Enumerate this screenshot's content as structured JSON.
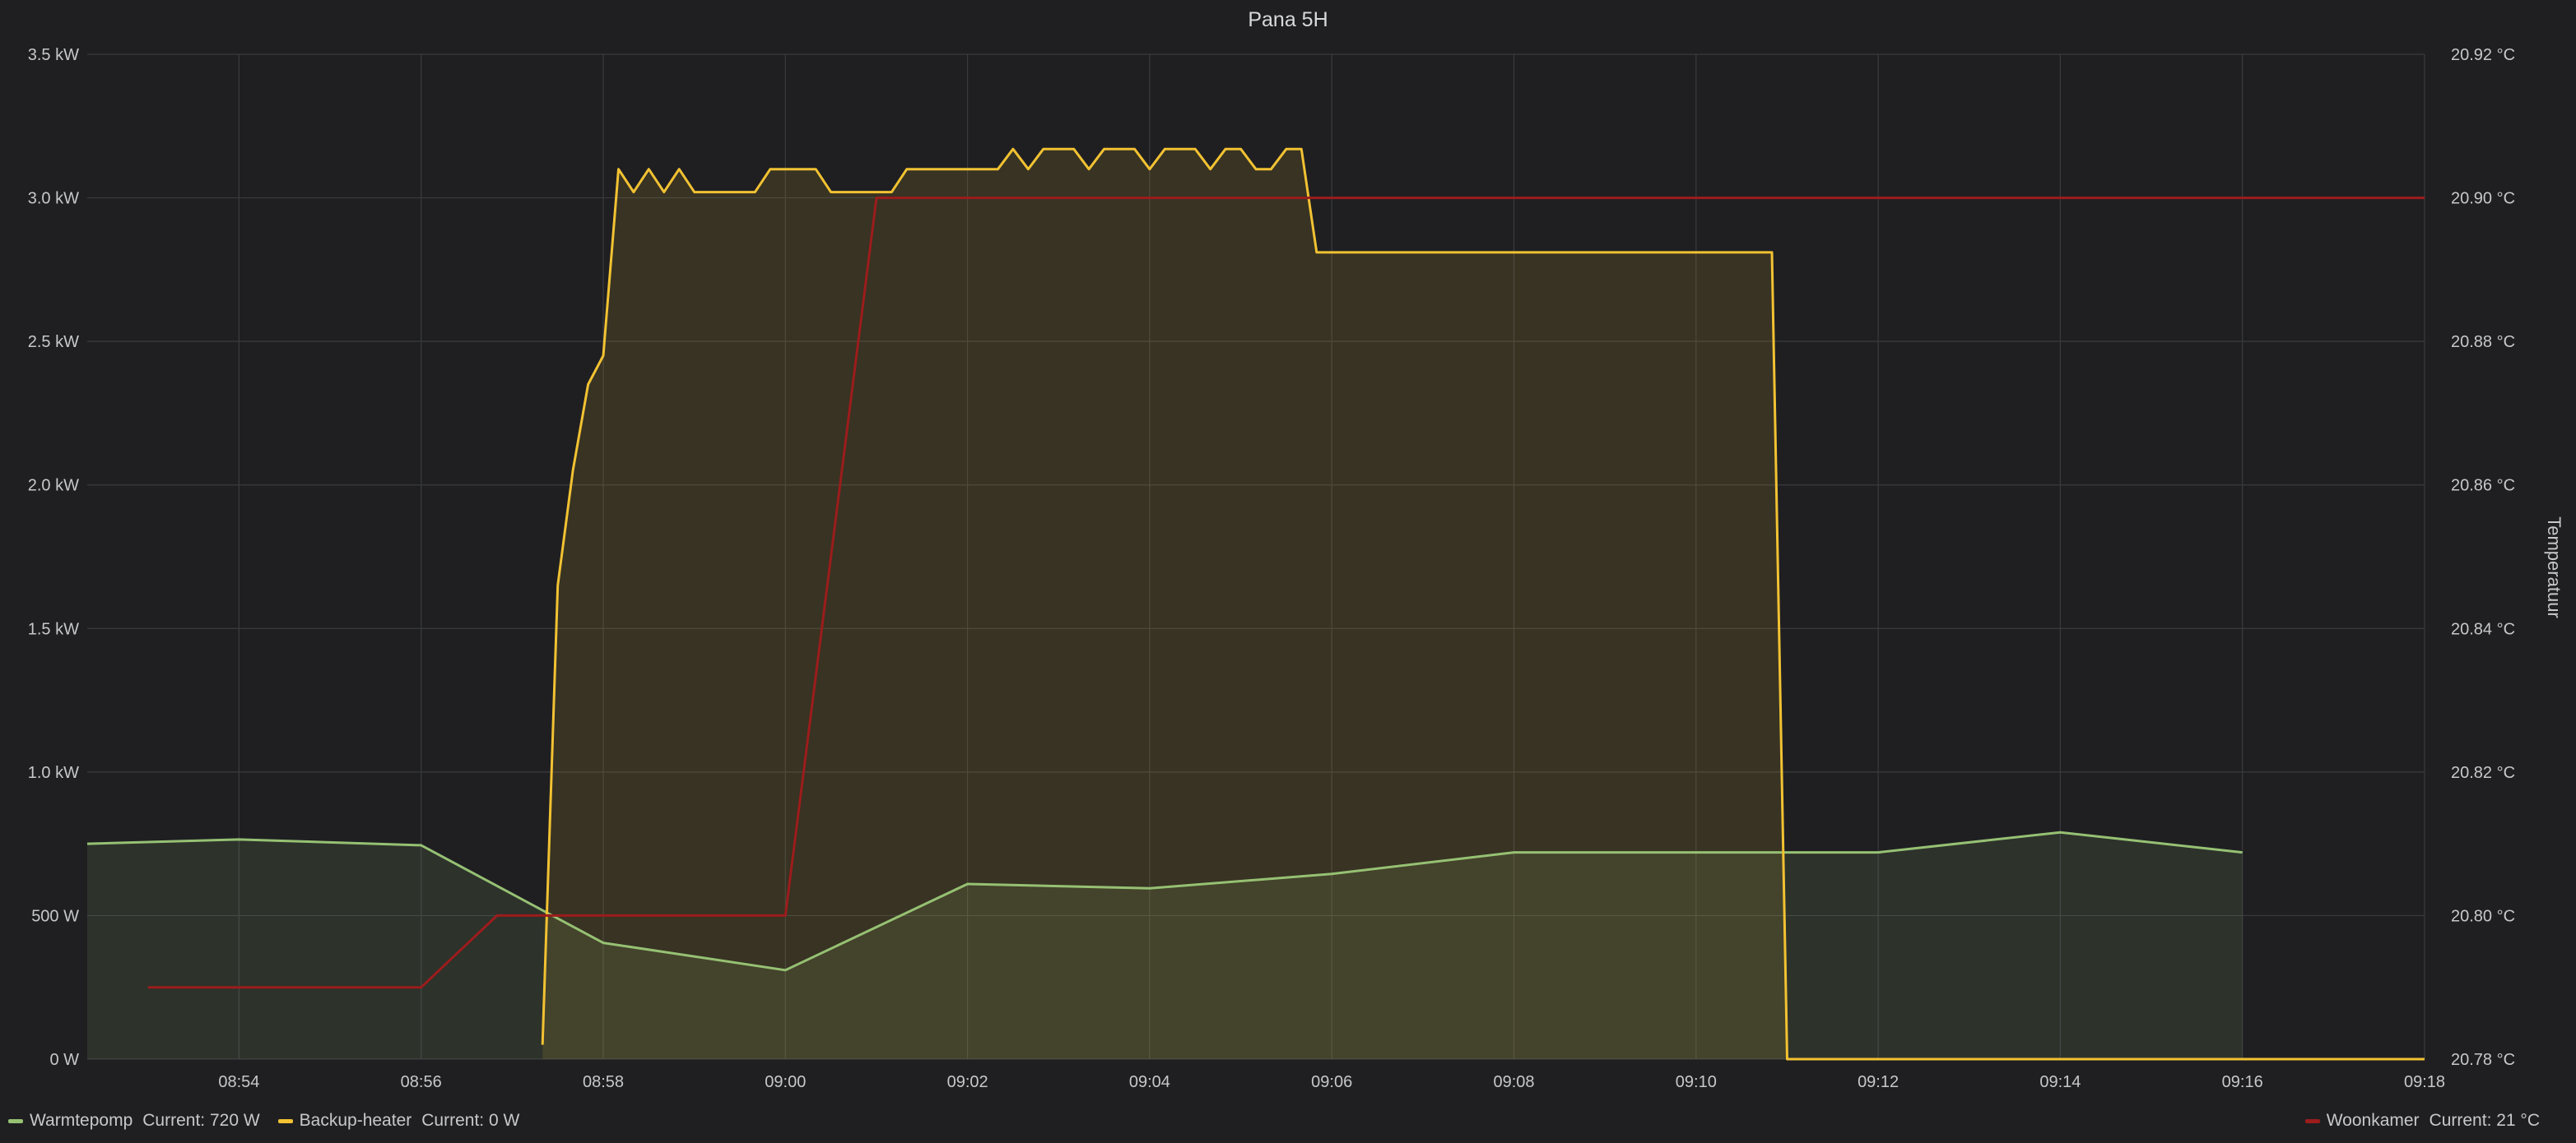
{
  "panel": {
    "title": "Pana 5H"
  },
  "colors": {
    "background": "#1f1f22",
    "grid": "#3a3b3f",
    "text": "#c7c8ca",
    "warmtepomp": "#96c173",
    "backup": "#f2c232",
    "woonkamer": "#9c1c1c"
  },
  "legend": [
    {
      "name": "Warmtepomp",
      "current_label": "Current:",
      "current_value": "720 W",
      "color": "#96c173",
      "side": "left"
    },
    {
      "name": "Backup-heater",
      "current_label": "Current:",
      "current_value": "0 W",
      "color": "#f2c232",
      "side": "left"
    },
    {
      "name": "Woonkamer",
      "current_label": "Current:",
      "current_value": "21 °C",
      "color": "#9c1c1c",
      "side": "right"
    }
  ],
  "chart_data": {
    "type": "area",
    "title": "Pana 5H",
    "grid": true,
    "legend_position": "bottom",
    "x_ticks": [
      "08:54",
      "08:56",
      "08:58",
      "09:00",
      "09:02",
      "09:04",
      "09:06",
      "09:08",
      "09:10",
      "09:12",
      "09:14",
      "09:16",
      "09:18"
    ],
    "x_range": [
      "08:52:20",
      "09:18:00"
    ],
    "y_left": {
      "range": [
        0,
        3500
      ],
      "unit": "W",
      "ticks": [
        0,
        500,
        1000,
        1500,
        2000,
        2500,
        3000,
        3500
      ],
      "tick_labels": [
        "0 W",
        "500 W",
        "1.0 kW",
        "1.5 kW",
        "2.0 kW",
        "2.5 kW",
        "3.0 kW",
        "3.5 kW"
      ]
    },
    "y_right": {
      "label": "Temperatuur",
      "range": [
        20.78,
        20.92
      ],
      "unit": "°C",
      "ticks": [
        20.78,
        20.8,
        20.82,
        20.84,
        20.86,
        20.88,
        20.9,
        20.92
      ],
      "tick_labels": [
        "20.78 °C",
        "20.80 °C",
        "20.82 °C",
        "20.84 °C",
        "20.86 °C",
        "20.88 °C",
        "20.90 °C",
        "20.92 °C"
      ]
    },
    "series": [
      {
        "name": "Warmtepomp",
        "axis": "left",
        "fill": true,
        "color": "#96c173",
        "points": [
          [
            "08:52:20",
            750
          ],
          [
            "08:54:00",
            765
          ],
          [
            "08:56:00",
            745
          ],
          [
            "08:58:00",
            405
          ],
          [
            "09:00:00",
            310
          ],
          [
            "09:02:00",
            610
          ],
          [
            "09:04:00",
            595
          ],
          [
            "09:06:00",
            645
          ],
          [
            "09:08:00",
            720
          ],
          [
            "09:10:00",
            720
          ],
          [
            "09:12:00",
            720
          ],
          [
            "09:14:00",
            790
          ],
          [
            "09:16:00",
            720
          ]
        ]
      },
      {
        "name": "Backup-heater",
        "axis": "left",
        "fill": true,
        "color": "#f2c232",
        "points": [
          [
            "08:57:20",
            50
          ],
          [
            "08:57:30",
            1650
          ],
          [
            "08:57:40",
            2050
          ],
          [
            "08:57:50",
            2350
          ],
          [
            "08:58:00",
            2450
          ],
          [
            "08:58:10",
            3100
          ],
          [
            "08:58:20",
            3020
          ],
          [
            "08:58:30",
            3100
          ],
          [
            "08:58:40",
            3020
          ],
          [
            "08:58:50",
            3100
          ],
          [
            "08:59:00",
            3020
          ],
          [
            "08:59:40",
            3020
          ],
          [
            "08:59:50",
            3100
          ],
          [
            "09:00:20",
            3100
          ],
          [
            "09:00:30",
            3020
          ],
          [
            "09:01:10",
            3020
          ],
          [
            "09:01:20",
            3100
          ],
          [
            "09:02:20",
            3100
          ],
          [
            "09:02:30",
            3170
          ],
          [
            "09:02:40",
            3100
          ],
          [
            "09:02:50",
            3170
          ],
          [
            "09:03:10",
            3170
          ],
          [
            "09:03:20",
            3100
          ],
          [
            "09:03:30",
            3170
          ],
          [
            "09:03:50",
            3170
          ],
          [
            "09:04:00",
            3100
          ],
          [
            "09:04:10",
            3170
          ],
          [
            "09:04:30",
            3170
          ],
          [
            "09:04:40",
            3100
          ],
          [
            "09:04:50",
            3170
          ],
          [
            "09:05:00",
            3170
          ],
          [
            "09:05:10",
            3100
          ],
          [
            "09:05:20",
            3100
          ],
          [
            "09:05:30",
            3170
          ],
          [
            "09:05:40",
            3170
          ],
          [
            "09:05:50",
            2810
          ],
          [
            "09:10:50",
            2810
          ],
          [
            "09:11:00",
            0
          ],
          [
            "09:18:00",
            0
          ]
        ]
      },
      {
        "name": "Woonkamer",
        "axis": "right",
        "fill": false,
        "color": "#9c1c1c",
        "points": [
          [
            "08:53:00",
            20.79
          ],
          [
            "08:56:00",
            20.79
          ],
          [
            "08:56:50",
            20.8
          ],
          [
            "09:00:00",
            20.8
          ],
          [
            "09:01:00",
            20.9
          ],
          [
            "09:18:00",
            20.9
          ]
        ]
      }
    ]
  }
}
